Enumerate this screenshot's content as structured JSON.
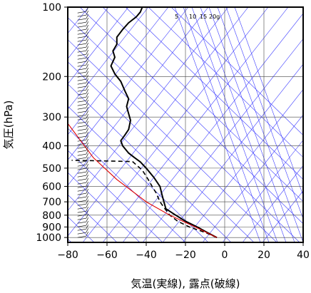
{
  "chart_data": {
    "type": "line",
    "title": "",
    "xlabel": "気温(実線), 露点(破線)",
    "ylabel": "気圧(hPa)",
    "xlim": [
      -80,
      40
    ],
    "ylim": [
      1050,
      100
    ],
    "y_scale": "log",
    "x_ticks": [
      -80,
      -60,
      -40,
      -20,
      0,
      20,
      40
    ],
    "x_tick_labels": [
      "−80",
      "−60",
      "−40",
      "−20",
      "0",
      "20",
      "40"
    ],
    "y_ticks": [
      100,
      200,
      300,
      400,
      500,
      600,
      700,
      800,
      900,
      1000
    ],
    "y_tick_labels": [
      "100",
      "200",
      "300",
      "400",
      "500",
      "600",
      "700",
      "800",
      "900",
      "1000"
    ],
    "mixing_ratio_labels": [
      "5",
      "10",
      "15",
      "20g"
    ],
    "series": [
      {
        "style": "solid-black",
        "points": [
          [
            -4,
            1000
          ],
          [
            -9,
            950
          ],
          [
            -14,
            900
          ],
          [
            -20,
            850
          ],
          [
            -25,
            800
          ],
          [
            -30,
            750
          ],
          [
            -31,
            700
          ],
          [
            -32,
            650
          ],
          [
            -33,
            600
          ],
          [
            -36,
            550
          ],
          [
            -40,
            500
          ],
          [
            -43,
            470
          ],
          [
            -46,
            450
          ],
          [
            -49,
            430
          ],
          [
            -52,
            400
          ],
          [
            -53,
            380
          ],
          [
            -51,
            360
          ],
          [
            -49,
            340
          ],
          [
            -48,
            310
          ],
          [
            -49,
            290
          ],
          [
            -50,
            270
          ],
          [
            -49,
            250
          ],
          [
            -51,
            230
          ],
          [
            -53,
            210
          ],
          [
            -56,
            195
          ],
          [
            -58,
            180
          ],
          [
            -56,
            165
          ],
          [
            -57,
            155
          ],
          [
            -55,
            145
          ],
          [
            -55,
            135
          ],
          [
            -52,
            125
          ],
          [
            -49,
            117
          ],
          [
            -45,
            110
          ],
          [
            -43,
            105
          ],
          [
            -42,
            100
          ]
        ]
      },
      {
        "style": "dashed-black",
        "points": [
          [
            -4,
            1000
          ],
          [
            -10,
            950
          ],
          [
            -18,
            900
          ],
          [
            -24,
            850
          ],
          [
            -28,
            800
          ],
          [
            -31,
            740
          ],
          [
            -33,
            700
          ],
          [
            -35,
            640
          ],
          [
            -37,
            600
          ],
          [
            -39,
            560
          ],
          [
            -42,
            510
          ],
          [
            -47,
            468
          ],
          [
            -78,
            462
          ]
        ]
      },
      {
        "style": "solid-red",
        "points": [
          [
            -4,
            1000
          ],
          [
            -15,
            900
          ],
          [
            -28,
            800
          ],
          [
            -40,
            700
          ],
          [
            -55,
            560
          ],
          [
            -67,
            450
          ],
          [
            -80,
            320
          ]
        ]
      }
    ],
    "grid": true,
    "wind_barbs": true
  }
}
